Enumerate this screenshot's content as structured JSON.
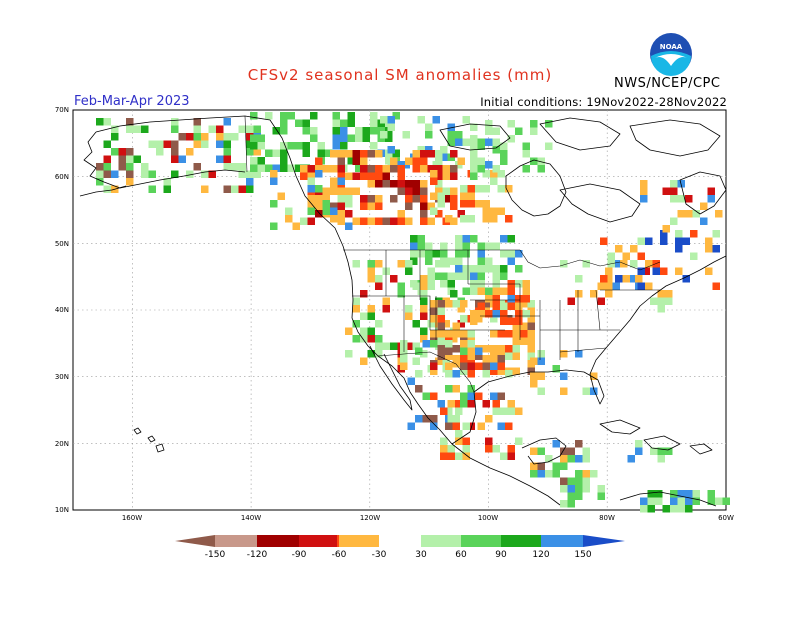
{
  "header": {
    "title": "CFSv2 seasonal SM anomalies (mm)",
    "period": "Feb-Mar-Apr 2023",
    "initial_conditions": "Initial conditions: 19Nov2022-28Nov2022",
    "agency": "NWS/NCEP/CPC",
    "logo_text": "NOAA"
  },
  "map": {
    "lat_labels": [
      "70N",
      "60N",
      "50N",
      "40N",
      "30N",
      "20N",
      "10N"
    ],
    "lon_labels": [
      "160W",
      "140W",
      "120W",
      "100W",
      "80W",
      "60W"
    ],
    "lat_range": [
      10,
      70
    ],
    "lon_range": [
      -170,
      -60
    ],
    "grid": "dotted"
  },
  "colorbar": {
    "labels": [
      "-150",
      "-120",
      "-90",
      "-60",
      "-30",
      "30",
      "60",
      "90",
      "120",
      "150"
    ],
    "colors": [
      "#8f5a4a",
      "#c8988a",
      "#a00000",
      "#d01010",
      "#ff4a10",
      "#ffb840",
      "#ffffff",
      "#b4f0aa",
      "#5ad35a",
      "#1ca81c",
      "#3b90e6",
      "#1a4dc8"
    ]
  },
  "colors": {
    "land_default": "#ffffff",
    "title": "#e0321f",
    "period": "#3030c8"
  }
}
